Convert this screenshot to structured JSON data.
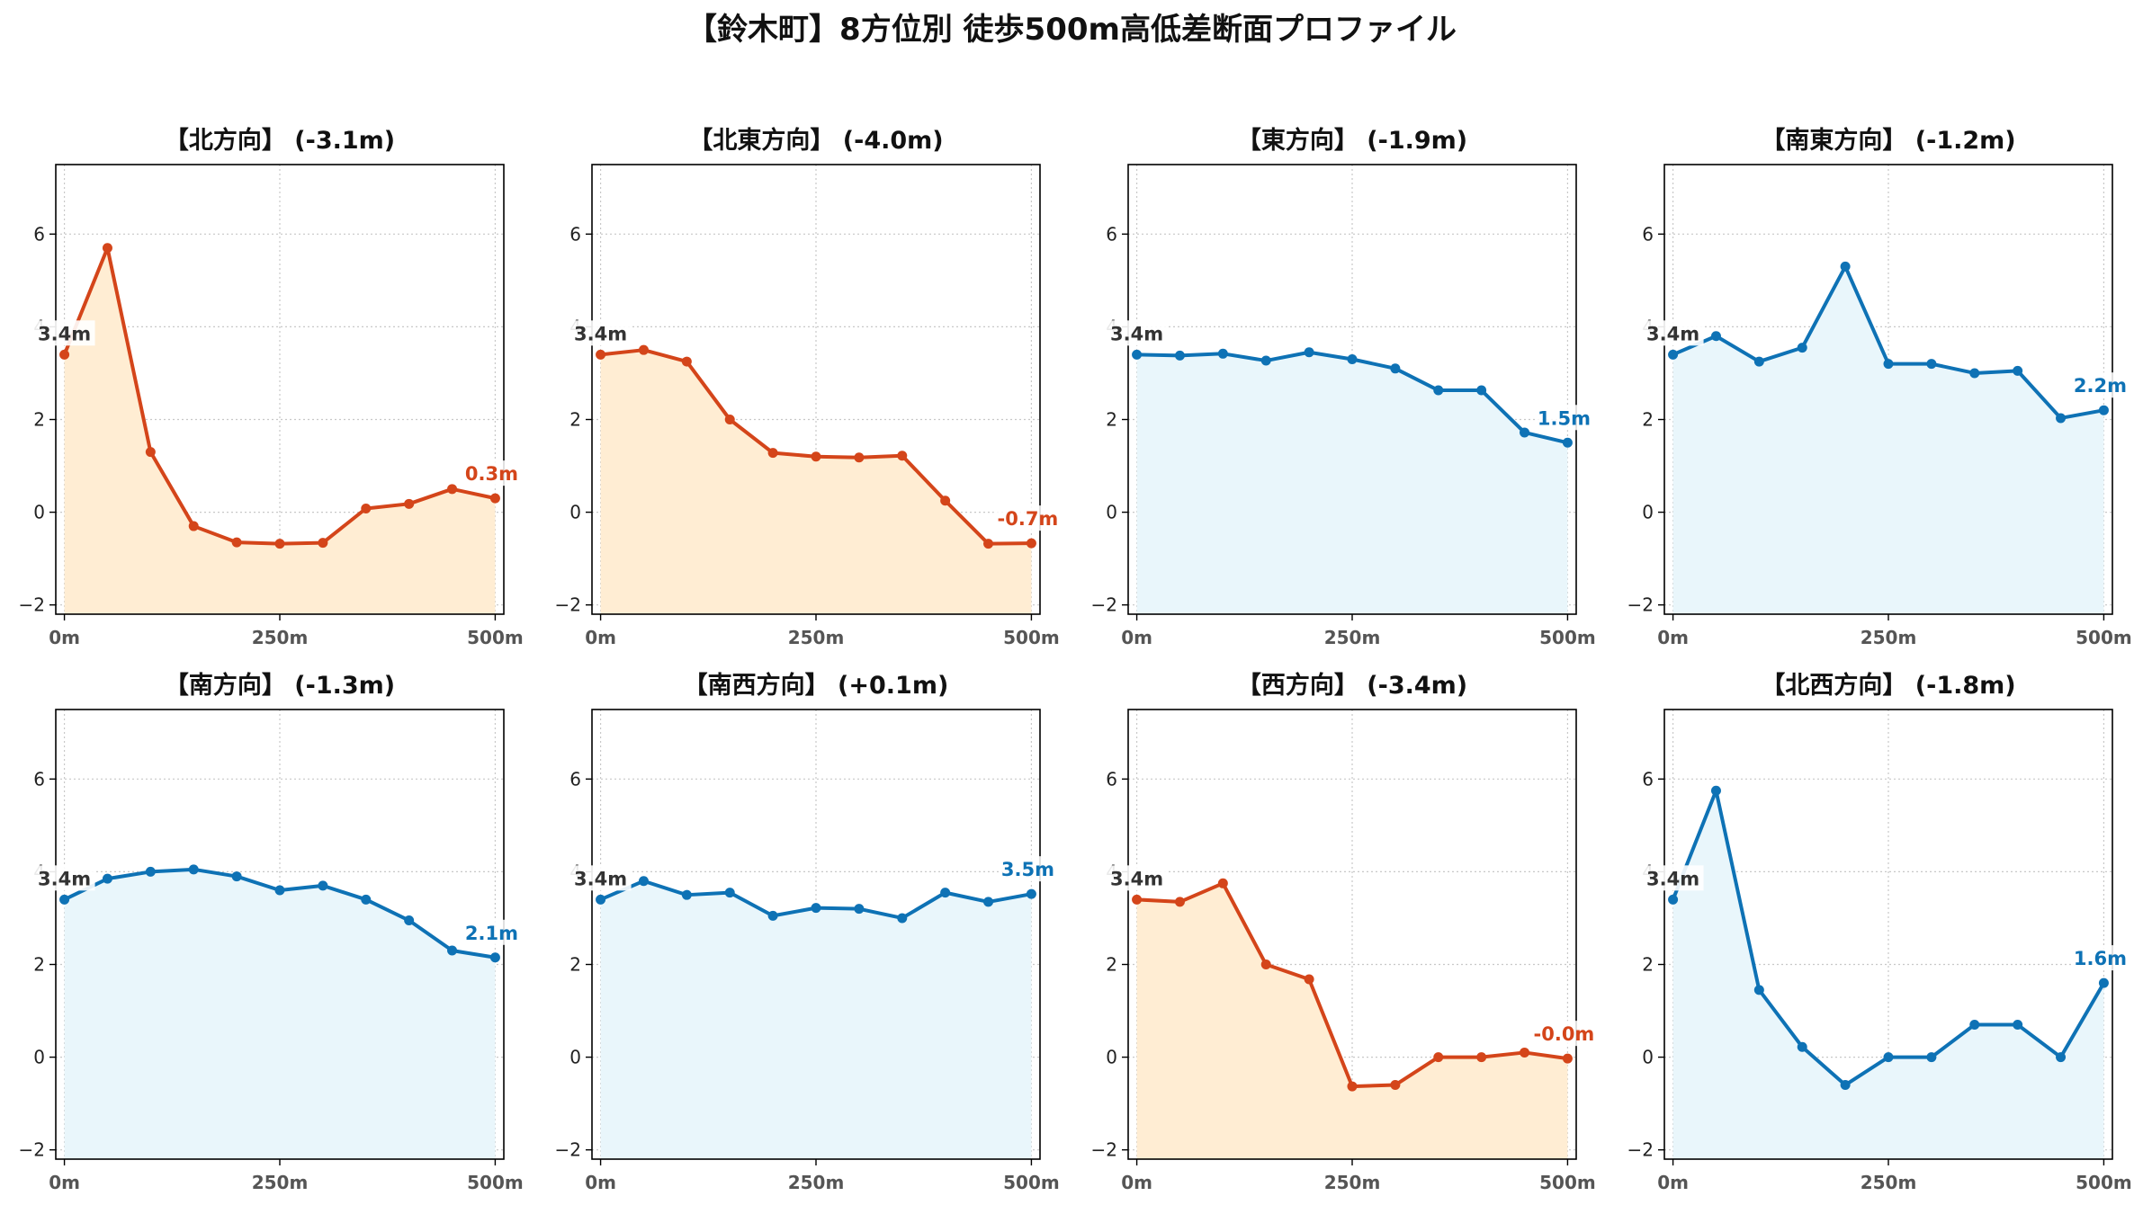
{
  "title": "【鈴木町】8方位別 徒歩500m高低差断面プロファイル",
  "colors": {
    "down_line": "#d4451a",
    "down_fill": "#ffedd3",
    "up_line": "#0e72b5",
    "up_fill": "#e9f6fb",
    "grid": "#c8c8c8",
    "start_label": "#333333"
  },
  "chart_data": [
    {
      "type": "line",
      "title": "【北方向】 (-3.1m)",
      "trend": "down",
      "x": [
        0,
        50,
        100,
        150,
        200,
        250,
        300,
        350,
        400,
        450,
        500
      ],
      "y": [
        3.4,
        5.7,
        1.3,
        -0.3,
        -0.65,
        -0.68,
        -0.66,
        0.08,
        0.18,
        0.5,
        0.3
      ],
      "start_label": "3.4m",
      "end_label": "0.3m",
      "xticks": [
        "0m",
        "250m",
        "500m"
      ],
      "yticks": [
        "−2",
        "0",
        "2",
        "4",
        "6"
      ],
      "xlim": [
        -10,
        510
      ],
      "ylim": [
        -2.2,
        7.5
      ],
      "grid": true
    },
    {
      "type": "line",
      "title": "【北東方向】 (-4.0m)",
      "trend": "down",
      "x": [
        0,
        50,
        100,
        150,
        200,
        250,
        300,
        350,
        400,
        450,
        500
      ],
      "y": [
        3.4,
        3.5,
        3.25,
        2.0,
        1.28,
        1.2,
        1.18,
        1.22,
        0.25,
        -0.68,
        -0.67
      ],
      "start_label": "3.4m",
      "end_label": "-0.7m",
      "xticks": [
        "0m",
        "250m",
        "500m"
      ],
      "yticks": [
        "−2",
        "0",
        "2",
        "4",
        "6"
      ],
      "xlim": [
        -10,
        510
      ],
      "ylim": [
        -2.2,
        7.5
      ],
      "grid": true
    },
    {
      "type": "line",
      "title": "【東方向】 (-1.9m)",
      "trend": "up",
      "x": [
        0,
        50,
        100,
        150,
        200,
        250,
        300,
        350,
        400,
        450,
        500
      ],
      "y": [
        3.4,
        3.38,
        3.42,
        3.27,
        3.45,
        3.3,
        3.1,
        2.63,
        2.63,
        1.72,
        1.5
      ],
      "start_label": "3.4m",
      "end_label": "1.5m",
      "xticks": [
        "0m",
        "250m",
        "500m"
      ],
      "yticks": [
        "−2",
        "0",
        "2",
        "4",
        "6"
      ],
      "xlim": [
        -10,
        510
      ],
      "ylim": [
        -2.2,
        7.5
      ],
      "grid": true
    },
    {
      "type": "line",
      "title": "【南東方向】 (-1.2m)",
      "trend": "up",
      "x": [
        0,
        50,
        100,
        150,
        200,
        250,
        300,
        350,
        400,
        450,
        500
      ],
      "y": [
        3.4,
        3.8,
        3.25,
        3.55,
        5.3,
        3.2,
        3.2,
        3.0,
        3.05,
        2.03,
        2.2
      ],
      "start_label": "3.4m",
      "end_label": "2.2m",
      "xticks": [
        "0m",
        "250m",
        "500m"
      ],
      "yticks": [
        "−2",
        "0",
        "2",
        "4",
        "6"
      ],
      "xlim": [
        -10,
        510
      ],
      "ylim": [
        -2.2,
        7.5
      ],
      "grid": true
    },
    {
      "type": "line",
      "title": "【南方向】 (-1.3m)",
      "trend": "up",
      "x": [
        0,
        50,
        100,
        150,
        200,
        250,
        300,
        350,
        400,
        450,
        500
      ],
      "y": [
        3.4,
        3.85,
        4.0,
        4.05,
        3.9,
        3.6,
        3.7,
        3.4,
        2.95,
        2.3,
        2.15
      ],
      "start_label": "3.4m",
      "end_label": "2.1m",
      "xticks": [
        "0m",
        "250m",
        "500m"
      ],
      "yticks": [
        "−2",
        "0",
        "2",
        "4",
        "6"
      ],
      "xlim": [
        -10,
        510
      ],
      "ylim": [
        -2.2,
        7.5
      ],
      "grid": true
    },
    {
      "type": "line",
      "title": "【南西方向】 (+0.1m)",
      "trend": "up",
      "x": [
        0,
        50,
        100,
        150,
        200,
        250,
        300,
        350,
        400,
        450,
        500
      ],
      "y": [
        3.4,
        3.8,
        3.5,
        3.55,
        3.05,
        3.22,
        3.2,
        3.0,
        3.55,
        3.35,
        3.52
      ],
      "start_label": "3.4m",
      "end_label": "3.5m",
      "xticks": [
        "0m",
        "250m",
        "500m"
      ],
      "yticks": [
        "−2",
        "0",
        "2",
        "4",
        "6"
      ],
      "xlim": [
        -10,
        510
      ],
      "ylim": [
        -2.2,
        7.5
      ],
      "grid": true
    },
    {
      "type": "line",
      "title": "【西方向】 (-3.4m)",
      "trend": "down",
      "x": [
        0,
        50,
        100,
        150,
        200,
        250,
        300,
        350,
        400,
        450,
        500
      ],
      "y": [
        3.4,
        3.35,
        3.75,
        2.0,
        1.68,
        -0.63,
        -0.6,
        0.0,
        0.0,
        0.1,
        -0.03
      ],
      "start_label": "3.4m",
      "end_label": "-0.0m",
      "xticks": [
        "0m",
        "250m",
        "500m"
      ],
      "yticks": [
        "−2",
        "0",
        "2",
        "4",
        "6"
      ],
      "xlim": [
        -10,
        510
      ],
      "ylim": [
        -2.2,
        7.5
      ],
      "grid": true
    },
    {
      "type": "line",
      "title": "【北西方向】 (-1.8m)",
      "trend": "up",
      "x": [
        0,
        50,
        100,
        150,
        200,
        250,
        300,
        350,
        400,
        450,
        500
      ],
      "y": [
        3.4,
        5.75,
        1.45,
        0.22,
        -0.6,
        0.0,
        0.0,
        0.7,
        0.7,
        0.0,
        1.6
      ],
      "start_label": "3.4m",
      "end_label": "1.6m",
      "xticks": [
        "0m",
        "250m",
        "500m"
      ],
      "yticks": [
        "−2",
        "0",
        "2",
        "4",
        "6"
      ],
      "xlim": [
        -10,
        510
      ],
      "ylim": [
        -2.2,
        7.5
      ],
      "grid": true
    }
  ]
}
